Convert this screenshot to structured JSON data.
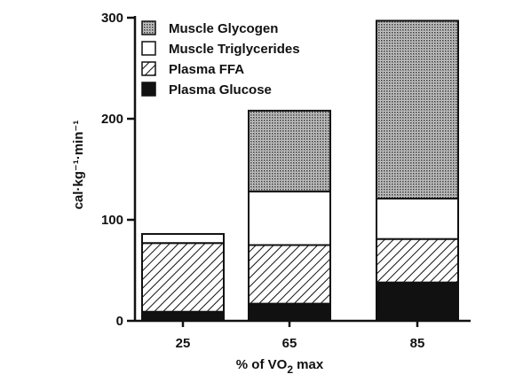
{
  "chart_data": {
    "type": "bar",
    "stacked": true,
    "categories": [
      "25",
      "65",
      "85"
    ],
    "series": [
      {
        "name": "Plasma Glucose",
        "fill": "solid-black",
        "values": [
          9,
          17,
          38
        ]
      },
      {
        "name": "Plasma FFA",
        "fill": "diagonal-hatch",
        "values": [
          68,
          58,
          43
        ]
      },
      {
        "name": "Muscle Triglycerides",
        "fill": "white",
        "values": [
          9,
          53,
          40
        ]
      },
      {
        "name": "Muscle Glycogen",
        "fill": "stipple",
        "values": [
          0,
          80,
          176
        ]
      }
    ],
    "legend_order": [
      "Muscle Glycogen",
      "Muscle Triglycerides",
      "Plasma FFA",
      "Plasma Glucose"
    ],
    "xlabel": {
      "prefix": "% of VO",
      "subscript": "2",
      "suffix": " max"
    },
    "ylabel": "cal·kg⁻¹·min⁻¹",
    "ylim": [
      0,
      300
    ],
    "yticks": [
      0,
      100,
      200,
      300
    ],
    "legend_position": "top-left",
    "grid": false
  }
}
